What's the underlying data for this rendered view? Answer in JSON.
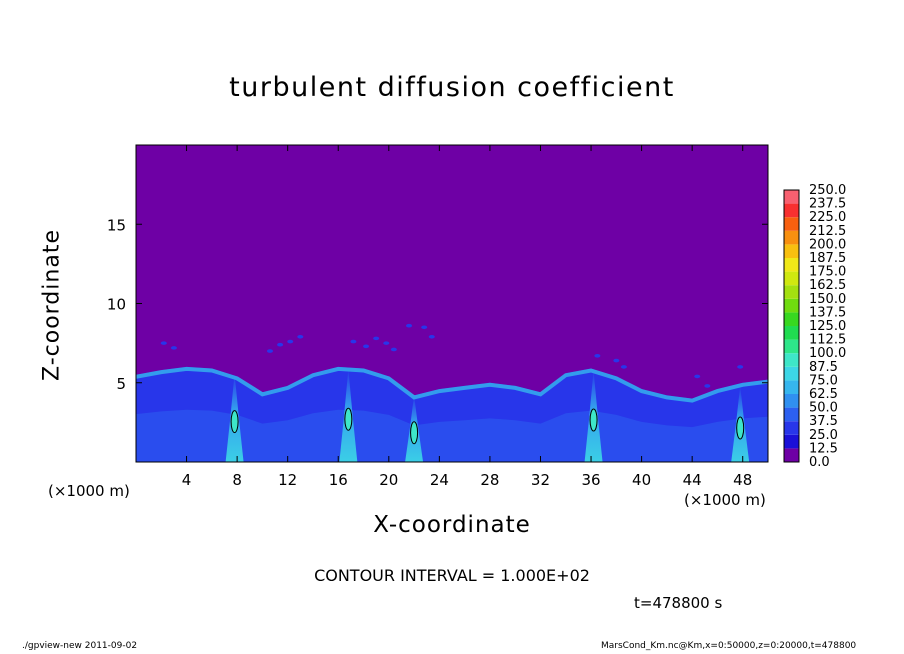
{
  "chart_data": {
    "type": "heatmap",
    "title": "turbulent diffusion coefficient",
    "xlabel": "X-coordinate",
    "ylabel": "Z-coordinate",
    "x_unit": "(×1000 m)",
    "xlim": [
      0,
      50
    ],
    "ylim": [
      0,
      20
    ],
    "x_ticks": [
      4,
      8,
      12,
      16,
      20,
      24,
      28,
      32,
      36,
      40,
      44,
      48
    ],
    "y_ticks": [
      5,
      10,
      15
    ],
    "colorbar": {
      "levels": [
        "0.0",
        "12.5",
        "25.0",
        "37.5",
        "50.0",
        "62.5",
        "75.0",
        "87.5",
        "100.0",
        "112.5",
        "125.0",
        "137.5",
        "150.0",
        "162.5",
        "175.0",
        "187.5",
        "200.0",
        "212.5",
        "225.0",
        "237.5",
        "250.0"
      ],
      "colors": [
        "#6e00a5",
        "#1a10d8",
        "#2836ea",
        "#2c60f0",
        "#3090f0",
        "#36b6ee",
        "#3cd6e6",
        "#3ee6c8",
        "#2ee68a",
        "#20dc50",
        "#38d820",
        "#70dc10",
        "#a4e010",
        "#d0e810",
        "#f0e818",
        "#f8c010",
        "#f89010",
        "#f86010",
        "#f83030",
        "#f86070"
      ]
    },
    "field_summary": {
      "background_value": "0.0",
      "boundary_layer_top": [
        [
          0,
          5.5
        ],
        [
          2,
          5.8
        ],
        [
          4,
          6.0
        ],
        [
          6,
          5.9
        ],
        [
          8,
          5.4
        ],
        [
          10,
          4.4
        ],
        [
          12,
          4.8
        ],
        [
          14,
          5.6
        ],
        [
          16,
          6.0
        ],
        [
          18,
          5.9
        ],
        [
          20,
          5.4
        ],
        [
          22,
          4.2
        ],
        [
          24,
          4.6
        ],
        [
          26,
          4.8
        ],
        [
          28,
          5.0
        ],
        [
          30,
          4.8
        ],
        [
          32,
          4.4
        ],
        [
          34,
          5.6
        ],
        [
          36,
          5.9
        ],
        [
          38,
          5.4
        ],
        [
          40,
          4.6
        ],
        [
          42,
          4.2
        ],
        [
          44,
          4.0
        ],
        [
          46,
          4.6
        ],
        [
          48,
          5.0
        ],
        [
          50,
          5.2
        ]
      ],
      "plumes": [
        {
          "x": 7.8,
          "z_top": 5.6,
          "peak": "87.5"
        },
        {
          "x": 16.8,
          "z_top": 5.9,
          "peak": "75.0"
        },
        {
          "x": 22.0,
          "z_top": 4.2,
          "peak": "87.5"
        },
        {
          "x": 36.2,
          "z_top": 5.8,
          "peak": "75.0"
        },
        {
          "x": 47.8,
          "z_top": 4.8,
          "peak": "87.5"
        }
      ],
      "debris": [
        [
          2.2,
          7.5
        ],
        [
          3.0,
          7.2
        ],
        [
          10.6,
          7.0
        ],
        [
          11.4,
          7.4
        ],
        [
          12.2,
          7.6
        ],
        [
          13.0,
          7.9
        ],
        [
          17.2,
          7.6
        ],
        [
          18.2,
          7.3
        ],
        [
          19.0,
          7.8
        ],
        [
          19.8,
          7.5
        ],
        [
          20.4,
          7.1
        ],
        [
          21.6,
          8.6
        ],
        [
          22.8,
          8.5
        ],
        [
          23.4,
          7.9
        ],
        [
          36.5,
          6.7
        ],
        [
          38.0,
          6.4
        ],
        [
          38.6,
          6.0
        ],
        [
          44.4,
          5.4
        ],
        [
          45.2,
          4.8
        ],
        [
          47.8,
          6.0
        ]
      ]
    }
  },
  "contour_interval": "CONTOUR INTERVAL = 1.000E+02",
  "time_label": "t=478800 s",
  "footer_left": "./gpview-new  2011-09-02",
  "footer_right": "MarsCond_Km.nc@Km,x=0:50000,z=0:20000,t=478800"
}
